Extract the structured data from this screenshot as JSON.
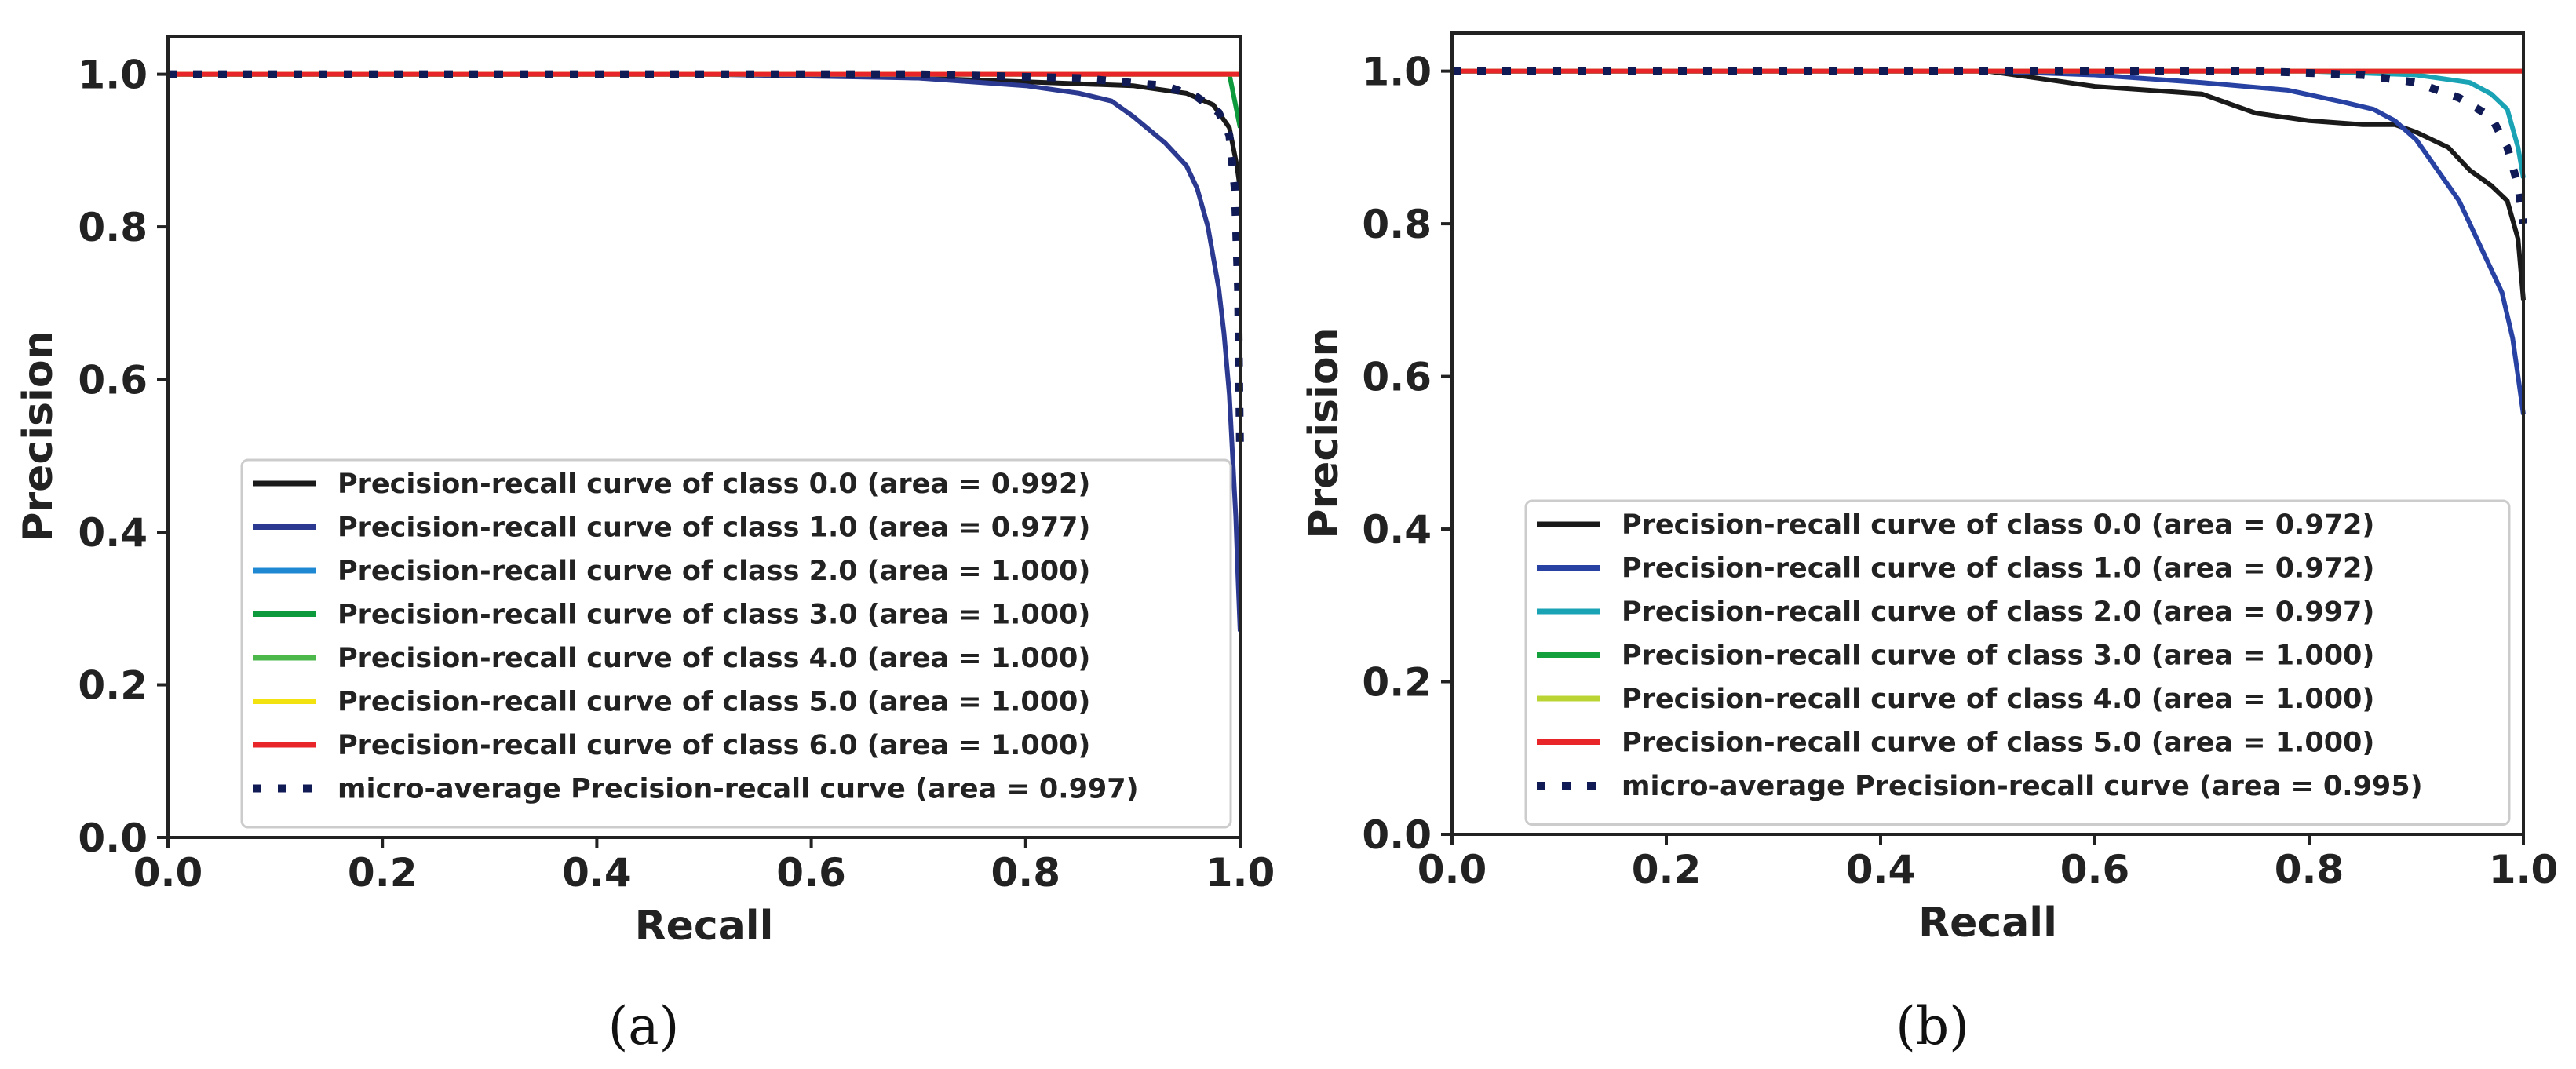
{
  "chart_data": [
    {
      "type": "line",
      "caption": "(a)",
      "xlabel": "Recall",
      "ylabel": "Precision",
      "xlim": [
        0.0,
        1.0
      ],
      "ylim": [
        0.0,
        1.05
      ],
      "xticks": [
        "0.0",
        "0.2",
        "0.4",
        "0.6",
        "0.8",
        "1.0"
      ],
      "yticks": [
        "0.0",
        "0.2",
        "0.4",
        "0.6",
        "0.8",
        "1.0"
      ],
      "legend_position": "lower-right",
      "series": [
        {
          "name": "Precision-recall curve of class 0.0 (area = 0.992)",
          "color": "#1a1a1a",
          "style": "solid",
          "x": [
            0.0,
            0.6,
            0.8,
            0.9,
            0.95,
            0.975,
            0.99,
            0.997,
            1.0
          ],
          "y": [
            1.0,
            1.0,
            0.99,
            0.985,
            0.975,
            0.96,
            0.93,
            0.88,
            0.85
          ]
        },
        {
          "name": "Precision-recall curve of class 1.0 (area = 0.977)",
          "color": "#2b3990",
          "style": "solid",
          "x": [
            0.0,
            0.5,
            0.7,
            0.8,
            0.85,
            0.88,
            0.9,
            0.93,
            0.95,
            0.96,
            0.97,
            0.98,
            0.985,
            0.99,
            0.993,
            0.996,
            0.998,
            1.0
          ],
          "y": [
            1.0,
            1.0,
            0.995,
            0.985,
            0.975,
            0.965,
            0.945,
            0.91,
            0.88,
            0.85,
            0.8,
            0.72,
            0.66,
            0.58,
            0.5,
            0.42,
            0.34,
            0.27
          ]
        },
        {
          "name": "Precision-recall curve of class 2.0 (area = 1.000)",
          "color": "#1f88d2",
          "style": "solid",
          "x": [
            0.0,
            1.0
          ],
          "y": [
            1.0,
            1.0
          ]
        },
        {
          "name": "Precision-recall curve of class 3.0 (area = 1.000)",
          "color": "#0d9a3c",
          "style": "solid",
          "x": [
            0.0,
            0.99,
            1.0
          ],
          "y": [
            1.0,
            1.0,
            0.93
          ]
        },
        {
          "name": "Precision-recall curve of class 4.0 (area = 1.000)",
          "color": "#4cb84c",
          "style": "solid",
          "x": [
            0.0,
            1.0
          ],
          "y": [
            1.0,
            1.0
          ]
        },
        {
          "name": "Precision-recall curve of class 5.0 (area = 1.000)",
          "color": "#f2e20f",
          "style": "solid",
          "x": [
            0.0,
            1.0
          ],
          "y": [
            1.0,
            1.0
          ]
        },
        {
          "name": "Precision-recall curve of class 6.0 (area = 1.000)",
          "color": "#e8262a",
          "style": "solid",
          "x": [
            0.0,
            1.0
          ],
          "y": [
            1.0,
            1.0
          ]
        },
        {
          "name": "micro-average Precision-recall curve (area = 0.997)",
          "color": "#101a55",
          "style": "dotted",
          "x": [
            0.0,
            0.7,
            0.85,
            0.93,
            0.96,
            0.98,
            0.99,
            0.995,
            0.998,
            1.0
          ],
          "y": [
            1.0,
            1.0,
            0.995,
            0.985,
            0.97,
            0.95,
            0.92,
            0.85,
            0.72,
            0.5
          ]
        }
      ]
    },
    {
      "type": "line",
      "caption": "(b)",
      "xlabel": "Recall",
      "ylabel": "Precision",
      "xlim": [
        0.0,
        1.0
      ],
      "ylim": [
        0.0,
        1.05
      ],
      "xticks": [
        "0.0",
        "0.2",
        "0.4",
        "0.6",
        "0.8",
        "1.0"
      ],
      "yticks": [
        "0.0",
        "0.2",
        "0.4",
        "0.6",
        "0.8",
        "1.0"
      ],
      "legend_position": "lower-right",
      "series": [
        {
          "name": "Precision-recall curve of class 0.0 (area = 0.972)",
          "color": "#1a1a1a",
          "style": "solid",
          "x": [
            0.0,
            0.5,
            0.55,
            0.6,
            0.65,
            0.7,
            0.72,
            0.75,
            0.8,
            0.85,
            0.88,
            0.9,
            0.93,
            0.95,
            0.97,
            0.985,
            0.995,
            1.0
          ],
          "y": [
            1.0,
            1.0,
            0.99,
            0.98,
            0.975,
            0.97,
            0.96,
            0.945,
            0.935,
            0.93,
            0.93,
            0.92,
            0.9,
            0.87,
            0.85,
            0.83,
            0.78,
            0.7
          ]
        },
        {
          "name": "Precision-recall curve of class 1.0 (area = 0.972)",
          "color": "#2742a3",
          "style": "solid",
          "x": [
            0.0,
            0.5,
            0.6,
            0.7,
            0.78,
            0.83,
            0.86,
            0.88,
            0.9,
            0.92,
            0.94,
            0.95,
            0.96,
            0.97,
            0.98,
            0.99,
            0.995,
            1.0
          ],
          "y": [
            1.0,
            1.0,
            0.995,
            0.985,
            0.975,
            0.96,
            0.95,
            0.935,
            0.91,
            0.87,
            0.83,
            0.8,
            0.77,
            0.74,
            0.71,
            0.65,
            0.6,
            0.55
          ]
        },
        {
          "name": "Precision-recall curve of class 2.0 (area = 0.997)",
          "color": "#1aa3b5",
          "style": "solid",
          "x": [
            0.0,
            0.8,
            0.9,
            0.95,
            0.97,
            0.985,
            0.995,
            1.0
          ],
          "y": [
            1.0,
            1.0,
            0.995,
            0.985,
            0.97,
            0.95,
            0.9,
            0.86
          ]
        },
        {
          "name": "Precision-recall curve of class 3.0 (area = 1.000)",
          "color": "#14a03c",
          "style": "solid",
          "x": [
            0.0,
            1.0
          ],
          "y": [
            1.0,
            1.0
          ]
        },
        {
          "name": "Precision-recall curve of class 4.0 (area = 1.000)",
          "color": "#b9d433",
          "style": "solid",
          "x": [
            0.0,
            1.0
          ],
          "y": [
            1.0,
            1.0
          ]
        },
        {
          "name": "Precision-recall curve of class 5.0 (area = 1.000)",
          "color": "#e8262a",
          "style": "solid",
          "x": [
            0.0,
            1.0
          ],
          "y": [
            1.0,
            1.0
          ]
        },
        {
          "name": "micro-average Precision-recall curve (area = 0.995)",
          "color": "#101a55",
          "style": "dotted",
          "x": [
            0.0,
            0.75,
            0.85,
            0.9,
            0.94,
            0.97,
            0.985,
            0.995,
            1.0
          ],
          "y": [
            1.0,
            1.0,
            0.995,
            0.985,
            0.965,
            0.94,
            0.9,
            0.85,
            0.8
          ]
        }
      ]
    }
  ]
}
